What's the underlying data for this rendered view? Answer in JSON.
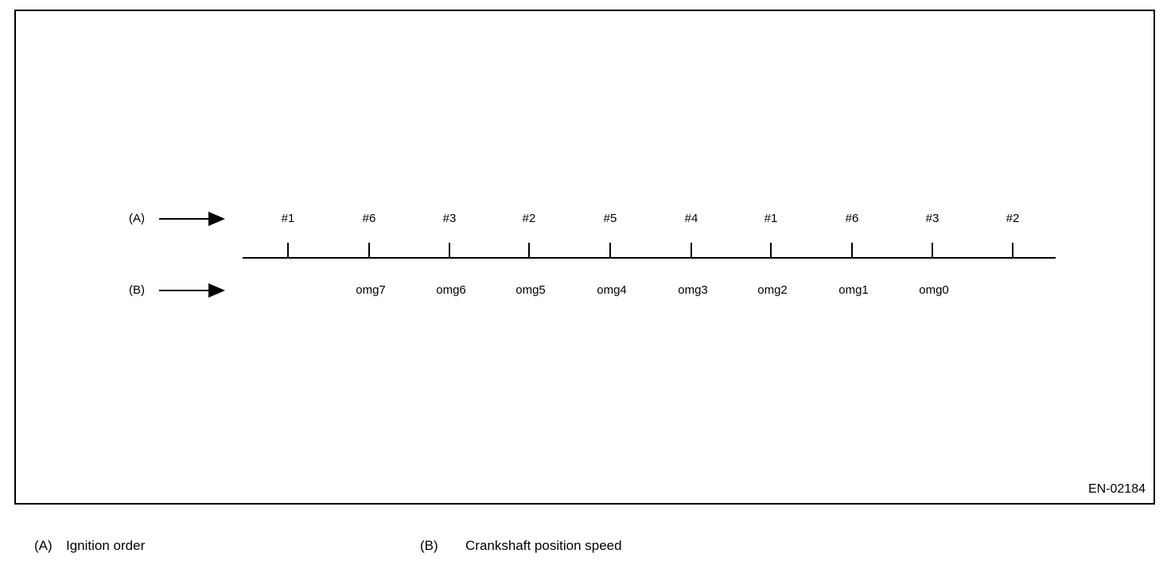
{
  "figure": {
    "code": "EN-02184",
    "row_a_marker": "(A)",
    "row_b_marker": "(B)",
    "ignition_labels": [
      "#1",
      "#6",
      "#3",
      "#2",
      "#5",
      "#4",
      "#1",
      "#6",
      "#3",
      "#2"
    ],
    "crank_labels": [
      "omg7",
      "omg6",
      "omg5",
      "omg4",
      "omg3",
      "omg2",
      "omg1",
      "omg0"
    ]
  },
  "legend": {
    "items": [
      {
        "marker": "(A)",
        "label": "Ignition order"
      },
      {
        "marker": "(B)",
        "label": "Crankshaft position speed"
      }
    ]
  },
  "colors": {
    "ink": "#000000",
    "background": "#ffffff"
  },
  "chart_data": {
    "type": "table",
    "title": "Ignition order vs crankshaft position speed",
    "categories": [
      "#1",
      "#6",
      "#3",
      "#2",
      "#5",
      "#4",
      "#1",
      "#6",
      "#3",
      "#2"
    ],
    "series": [
      {
        "name": "Ignition order",
        "values": [
          "#1",
          "#6",
          "#3",
          "#2",
          "#5",
          "#4",
          "#1",
          "#6",
          "#3",
          "#2"
        ]
      },
      {
        "name": "Crankshaft position speed",
        "values": [
          "omg7",
          "omg6",
          "omg5",
          "omg4",
          "omg3",
          "omg2",
          "omg1",
          "omg0"
        ]
      }
    ]
  }
}
